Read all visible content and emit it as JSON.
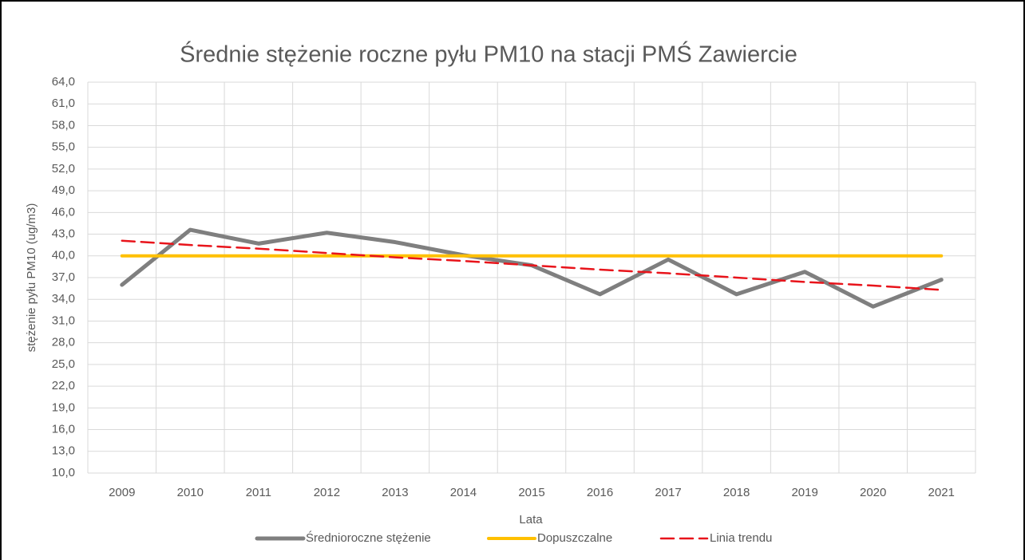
{
  "chart_data": {
    "type": "line",
    "title": "Średnie stężenie roczne pyłu PM10 na stacji PMŚ Zawiercie",
    "x_label": "Lata",
    "y_label": "stężenie pyłu PM10 (ug/m3)",
    "categories": [
      "2009",
      "2010",
      "2011",
      "2012",
      "2013",
      "2014",
      "2015",
      "2016",
      "2017",
      "2018",
      "2019",
      "2020",
      "2021"
    ],
    "series": [
      {
        "name": "Średnioroczne stężenie",
        "color": "#7f7f7f",
        "width": 5,
        "dashed": false,
        "values": [
          36.0,
          43.6,
          41.7,
          43.2,
          41.9,
          40.1,
          38.7,
          34.7,
          39.5,
          34.7,
          37.8,
          33.0,
          36.7
        ]
      },
      {
        "name": "Dopuszczalne",
        "color": "#ffc000",
        "width": 4,
        "dashed": false,
        "values": [
          40,
          40,
          40,
          40,
          40,
          40,
          40,
          40,
          40,
          40,
          40,
          40,
          40
        ]
      },
      {
        "name": "Linia trendu",
        "color": "#e8141b",
        "width": 2.5,
        "dashed": true,
        "values": [
          42.1,
          41.5,
          41.0,
          40.4,
          39.8,
          39.3,
          38.7,
          38.1,
          37.6,
          37.0,
          36.4,
          35.9,
          35.3
        ]
      }
    ],
    "ylim": [
      10,
      64
    ],
    "yticks": [
      {
        "value": 10,
        "label": "10,0"
      },
      {
        "value": 13,
        "label": "13,0"
      },
      {
        "value": 16,
        "label": "16,0"
      },
      {
        "value": 19,
        "label": "19,0"
      },
      {
        "value": 22,
        "label": "22,0"
      },
      {
        "value": 25,
        "label": "25,0"
      },
      {
        "value": 28,
        "label": "28,0"
      },
      {
        "value": 31,
        "label": "31,0"
      },
      {
        "value": 34,
        "label": "34,0"
      },
      {
        "value": 37,
        "label": "37,0"
      },
      {
        "value": 40,
        "label": "40,0"
      },
      {
        "value": 43,
        "label": "43,0"
      },
      {
        "value": 46,
        "label": "46,0"
      },
      {
        "value": 49,
        "label": "49,0"
      },
      {
        "value": 52,
        "label": "52,0"
      },
      {
        "value": 55,
        "label": "55,0"
      },
      {
        "value": 58,
        "label": "58,0"
      },
      {
        "value": 61,
        "label": "61,0"
      },
      {
        "value": 64,
        "label": "64,0"
      }
    ],
    "grid": true,
    "legend": "bottom"
  }
}
